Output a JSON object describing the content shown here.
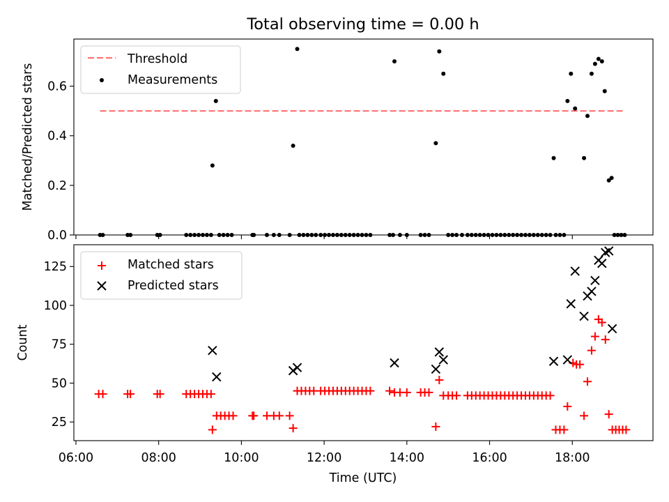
{
  "title": "Total observing time = 0.00 h",
  "chart_data": [
    {
      "type": "scatter",
      "ylabel": "Matched/Predicted stars",
      "ylim": [
        0,
        0.79
      ],
      "yticks": [
        0.0,
        0.2,
        0.4,
        0.6
      ],
      "ytick_labels": [
        "0.0",
        "0.2",
        "0.4",
        "0.6"
      ],
      "xlim_hours": [
        5.95,
        19.95
      ],
      "legend": {
        "position": "top-left",
        "entries": [
          "Threshold",
          "Measurements"
        ]
      },
      "colors": {
        "threshold": "#ff6b6b",
        "measurements": "#000000"
      },
      "threshold": {
        "name": "Threshold",
        "value": 0.5,
        "x": [
          "06:35",
          "19:15"
        ]
      },
      "measurements": {
        "name": "Measurements",
        "points": [
          [
            "06:35",
            0
          ],
          [
            "06:39",
            0
          ],
          [
            "07:15",
            0
          ],
          [
            "07:19",
            0
          ],
          [
            "07:58",
            0
          ],
          [
            "08:02",
            0
          ],
          [
            "08:40",
            0
          ],
          [
            "08:46",
            0
          ],
          [
            "08:52",
            0
          ],
          [
            "08:58",
            0
          ],
          [
            "09:04",
            0
          ],
          [
            "09:10",
            0
          ],
          [
            "09:16",
            0
          ],
          [
            "09:18",
            0.28
          ],
          [
            "09:23",
            0.54
          ],
          [
            "09:28",
            0
          ],
          [
            "09:34",
            0
          ],
          [
            "09:40",
            0
          ],
          [
            "09:46",
            0
          ],
          [
            "10:16",
            0
          ],
          [
            "10:18",
            0
          ],
          [
            "10:37",
            0
          ],
          [
            "10:47",
            0
          ],
          [
            "10:55",
            0
          ],
          [
            "11:10",
            0
          ],
          [
            "11:15",
            0.36
          ],
          [
            "11:21",
            0.75
          ],
          [
            "11:24",
            0
          ],
          [
            "11:30",
            0
          ],
          [
            "11:36",
            0
          ],
          [
            "11:42",
            0
          ],
          [
            "11:48",
            0
          ],
          [
            "11:55",
            0
          ],
          [
            "12:01",
            0
          ],
          [
            "12:07",
            0
          ],
          [
            "12:13",
            0
          ],
          [
            "12:19",
            0
          ],
          [
            "12:25",
            0
          ],
          [
            "12:31",
            0
          ],
          [
            "12:37",
            0
          ],
          [
            "12:43",
            0
          ],
          [
            "12:49",
            0
          ],
          [
            "12:55",
            0
          ],
          [
            "13:01",
            0
          ],
          [
            "13:07",
            0
          ],
          [
            "13:35",
            0
          ],
          [
            "13:40",
            0
          ],
          [
            "13:42",
            0.7
          ],
          [
            "13:50",
            0
          ],
          [
            "14:00",
            0
          ],
          [
            "14:20",
            0
          ],
          [
            "14:26",
            0
          ],
          [
            "14:32",
            0
          ],
          [
            "14:42",
            0.37
          ],
          [
            "14:47",
            0.74
          ],
          [
            "14:53",
            0.65
          ],
          [
            "15:00",
            0
          ],
          [
            "15:06",
            0
          ],
          [
            "15:12",
            0
          ],
          [
            "15:20",
            0
          ],
          [
            "15:28",
            0
          ],
          [
            "15:34",
            0
          ],
          [
            "15:40",
            0
          ],
          [
            "15:46",
            0
          ],
          [
            "15:52",
            0
          ],
          [
            "15:58",
            0
          ],
          [
            "16:04",
            0
          ],
          [
            "16:10",
            0
          ],
          [
            "16:16",
            0
          ],
          [
            "16:22",
            0
          ],
          [
            "16:28",
            0
          ],
          [
            "16:34",
            0
          ],
          [
            "16:40",
            0
          ],
          [
            "16:46",
            0
          ],
          [
            "16:52",
            0
          ],
          [
            "16:58",
            0
          ],
          [
            "17:04",
            0
          ],
          [
            "17:10",
            0
          ],
          [
            "17:16",
            0
          ],
          [
            "17:22",
            0
          ],
          [
            "17:28",
            0
          ],
          [
            "17:33",
            0.31
          ],
          [
            "17:36",
            0
          ],
          [
            "17:42",
            0
          ],
          [
            "17:48",
            0
          ],
          [
            "17:53",
            0.54
          ],
          [
            "17:58",
            0.65
          ],
          [
            "18:04",
            0.51
          ],
          [
            "18:17",
            0.31
          ],
          [
            "18:22",
            0.48
          ],
          [
            "18:28",
            0.65
          ],
          [
            "18:33",
            0.69
          ],
          [
            "18:38",
            0.71
          ],
          [
            "18:43",
            0.7
          ],
          [
            "18:47",
            0.58
          ],
          [
            "18:53",
            0.22
          ],
          [
            "18:57",
            0.23
          ],
          [
            "19:01",
            0
          ],
          [
            "19:06",
            0
          ],
          [
            "19:11",
            0
          ],
          [
            "19:16",
            0
          ]
        ]
      }
    },
    {
      "type": "scatter",
      "ylabel": "Count",
      "xlabel": "Time (UTC)",
      "ylim": [
        13,
        139
      ],
      "yticks": [
        25,
        50,
        75,
        100,
        125
      ],
      "ytick_labels": [
        "25",
        "50",
        "75",
        "100",
        "125"
      ],
      "xlim_hours": [
        5.95,
        19.95
      ],
      "xticks": [
        "06:00",
        "08:00",
        "10:00",
        "12:00",
        "14:00",
        "16:00",
        "18:00"
      ],
      "legend": {
        "position": "top-left",
        "entries": [
          "Matched stars",
          "Predicted stars"
        ]
      },
      "colors": {
        "matched": "#ff0000",
        "predicted": "#000000"
      },
      "series": [
        {
          "name": "Matched stars",
          "marker": "plus",
          "points": [
            [
              "06:33",
              43
            ],
            [
              "06:39",
              43
            ],
            [
              "07:15",
              43
            ],
            [
              "07:19",
              43
            ],
            [
              "07:58",
              43
            ],
            [
              "08:02",
              43
            ],
            [
              "08:40",
              43
            ],
            [
              "08:46",
              43
            ],
            [
              "08:52",
              43
            ],
            [
              "08:58",
              43
            ],
            [
              "09:04",
              43
            ],
            [
              "09:10",
              43
            ],
            [
              "09:16",
              43
            ],
            [
              "09:18",
              20
            ],
            [
              "09:24",
              29
            ],
            [
              "09:30",
              29
            ],
            [
              "09:36",
              29
            ],
            [
              "09:42",
              29
            ],
            [
              "09:48",
              29
            ],
            [
              "10:16",
              29
            ],
            [
              "10:18",
              29
            ],
            [
              "10:37",
              29
            ],
            [
              "10:47",
              29
            ],
            [
              "10:55",
              29
            ],
            [
              "11:10",
              29
            ],
            [
              "11:15",
              21
            ],
            [
              "11:21",
              45
            ],
            [
              "11:27",
              45
            ],
            [
              "11:33",
              45
            ],
            [
              "11:39",
              45
            ],
            [
              "11:45",
              45
            ],
            [
              "11:55",
              45
            ],
            [
              "12:01",
              45
            ],
            [
              "12:07",
              45
            ],
            [
              "12:13",
              45
            ],
            [
              "12:19",
              45
            ],
            [
              "12:25",
              45
            ],
            [
              "12:31",
              45
            ],
            [
              "12:37",
              45
            ],
            [
              "12:43",
              45
            ],
            [
              "12:49",
              45
            ],
            [
              "12:55",
              45
            ],
            [
              "13:01",
              45
            ],
            [
              "13:07",
              45
            ],
            [
              "13:35",
              45
            ],
            [
              "13:42",
              44
            ],
            [
              "13:50",
              44
            ],
            [
              "14:00",
              44
            ],
            [
              "14:20",
              44
            ],
            [
              "14:26",
              44
            ],
            [
              "14:32",
              44
            ],
            [
              "14:42",
              22
            ],
            [
              "14:47",
              52
            ],
            [
              "14:53",
              42
            ],
            [
              "15:00",
              42
            ],
            [
              "15:06",
              42
            ],
            [
              "15:12",
              42
            ],
            [
              "15:28",
              42
            ],
            [
              "15:34",
              42
            ],
            [
              "15:40",
              42
            ],
            [
              "15:46",
              42
            ],
            [
              "15:52",
              42
            ],
            [
              "15:58",
              42
            ],
            [
              "16:04",
              42
            ],
            [
              "16:10",
              42
            ],
            [
              "16:16",
              42
            ],
            [
              "16:22",
              42
            ],
            [
              "16:28",
              42
            ],
            [
              "16:34",
              42
            ],
            [
              "16:40",
              42
            ],
            [
              "16:46",
              42
            ],
            [
              "16:52",
              42
            ],
            [
              "16:58",
              42
            ],
            [
              "17:04",
              42
            ],
            [
              "17:10",
              42
            ],
            [
              "17:16",
              42
            ],
            [
              "17:22",
              42
            ],
            [
              "17:28",
              42
            ],
            [
              "17:36",
              20
            ],
            [
              "17:42",
              20
            ],
            [
              "17:48",
              20
            ],
            [
              "17:53",
              35
            ],
            [
              "18:01",
              63
            ],
            [
              "18:06",
              62
            ],
            [
              "18:11",
              62
            ],
            [
              "18:17",
              29
            ],
            [
              "18:22",
              51
            ],
            [
              "18:28",
              71
            ],
            [
              "18:33",
              80
            ],
            [
              "18:38",
              91
            ],
            [
              "18:43",
              89
            ],
            [
              "18:48",
              78
            ],
            [
              "18:53",
              30
            ],
            [
              "18:58",
              20
            ],
            [
              "19:03",
              20
            ],
            [
              "19:08",
              20
            ],
            [
              "19:13",
              20
            ],
            [
              "19:18",
              20
            ]
          ]
        },
        {
          "name": "Predicted stars",
          "marker": "x",
          "points": [
            [
              "09:18",
              71
            ],
            [
              "09:24",
              54
            ],
            [
              "11:15",
              58
            ],
            [
              "11:21",
              60
            ],
            [
              "13:42",
              63
            ],
            [
              "14:42",
              59
            ],
            [
              "14:47",
              70
            ],
            [
              "14:53",
              65
            ],
            [
              "17:33",
              64
            ],
            [
              "17:53",
              65
            ],
            [
              "17:58",
              101
            ],
            [
              "18:04",
              122
            ],
            [
              "18:17",
              93
            ],
            [
              "18:22",
              106
            ],
            [
              "18:28",
              109
            ],
            [
              "18:33",
              116
            ],
            [
              "18:38",
              129
            ],
            [
              "18:43",
              127
            ],
            [
              "18:48",
              134
            ],
            [
              "18:53",
              135
            ],
            [
              "18:58",
              85
            ]
          ]
        }
      ]
    }
  ]
}
